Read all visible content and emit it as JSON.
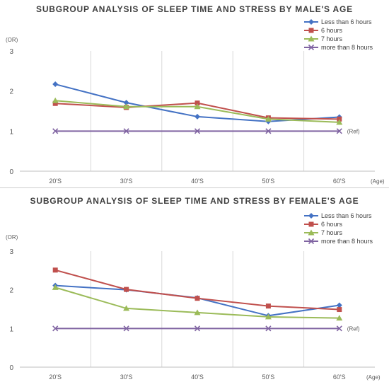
{
  "chart_data": [
    {
      "type": "line",
      "title": "SUBGROUP ANALYSIS OF SLEEP TIME AND STRESS BY MALE'S AGE",
      "ylabel": "(OR)",
      "xlabel": "(Age)",
      "categories": [
        "20'S",
        "30'S",
        "40'S",
        "50'S",
        "60'S"
      ],
      "ylim": [
        0,
        3
      ],
      "yticks": [
        "0",
        "1",
        "2",
        "3"
      ],
      "ref_label": "(Ref)",
      "grid": "vertical lines between categories",
      "legend_position": "top-right",
      "series": [
        {
          "name": "Less than 6 hours",
          "color": "#4472C4",
          "marker": "diamond",
          "values": [
            2.17,
            1.71,
            1.36,
            1.24,
            1.35
          ]
        },
        {
          "name": "6 hours",
          "color": "#C0504D",
          "marker": "square",
          "values": [
            1.69,
            1.59,
            1.7,
            1.33,
            1.3
          ]
        },
        {
          "name": "7 hours",
          "color": "#9BBB59",
          "marker": "triangle",
          "values": [
            1.76,
            1.61,
            1.61,
            1.3,
            1.22
          ]
        },
        {
          "name": "more than 8 hours",
          "color": "#8064A2",
          "marker": "x",
          "values": [
            1,
            1,
            1,
            1,
            1
          ]
        }
      ]
    },
    {
      "type": "line",
      "title": "SUBGROUP ANALYSIS OF SLEEP TIME AND STRESS BY FEMALE'S AGE",
      "ylabel": "(OR)",
      "xlabel": "(Age)",
      "categories": [
        "20'S",
        "30'S",
        "40'S",
        "50'S",
        "60'S"
      ],
      "ylim": [
        0,
        3
      ],
      "yticks": [
        "0",
        "1",
        "2",
        "3"
      ],
      "ref_label": "(Ref)",
      "grid": "vertical lines between categories",
      "legend_position": "top-right",
      "series": [
        {
          "name": "Less than 6 hours",
          "color": "#4472C4",
          "marker": "diamond",
          "values": [
            2.11,
            2.0,
            1.79,
            1.33,
            1.6
          ]
        },
        {
          "name": "6 hours",
          "color": "#C0504D",
          "marker": "square",
          "values": [
            2.51,
            2.01,
            1.78,
            1.58,
            1.49
          ]
        },
        {
          "name": "7 hours",
          "color": "#9BBB59",
          "marker": "triangle",
          "values": [
            2.06,
            1.52,
            1.41,
            1.3,
            1.27
          ]
        },
        {
          "name": "more than 8 hours",
          "color": "#8064A2",
          "marker": "x",
          "values": [
            1,
            1,
            1,
            1,
            1
          ]
        }
      ]
    }
  ]
}
